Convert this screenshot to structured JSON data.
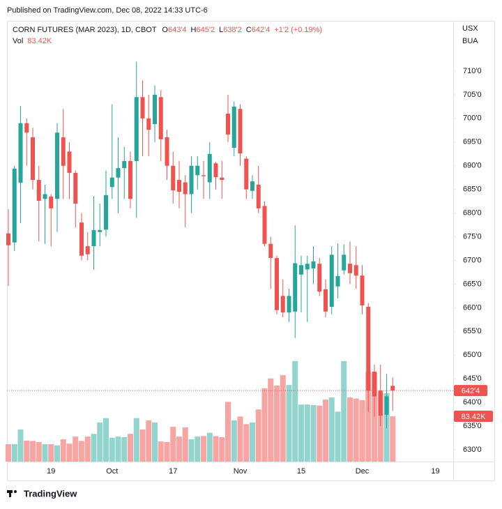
{
  "published": "Published on TradingView.com, Dec 08, 2022 14:33 UTC-6",
  "brand": "TradingView",
  "chart_data": {
    "type": "candlestick",
    "title": "CORN FUTURES (MAR 2023), 1D, CBOT",
    "ohlc_header": [
      {
        "key": "O",
        "value": "643'4"
      },
      {
        "key": "H",
        "value": "645'2"
      },
      {
        "key": "L",
        "value": "638'2"
      },
      {
        "key": "C",
        "value": "642'4"
      }
    ],
    "change": "+1'2 (+0.19%)",
    "currency": [
      "USX",
      "BUA"
    ],
    "last_price_label": "642'4",
    "up_color": "#26a69a",
    "down_color": "#ef5350",
    "volume_up_color": "#93d4ce",
    "volume_down_color": "#f6a5a3",
    "categories": [
      null,
      null,
      null,
      null,
      null,
      null,
      null,
      "19",
      null,
      null,
      null,
      null,
      null,
      null,
      null,
      null,
      null,
      "Oct",
      null,
      null,
      null,
      null,
      null,
      null,
      null,
      null,
      null,
      "17",
      null,
      null,
      null,
      null,
      null,
      null,
      null,
      null,
      null,
      null,
      "Nov",
      null,
      null,
      null,
      null,
      null,
      null,
      null,
      null,
      null,
      "15",
      null,
      null,
      null,
      null,
      null,
      null,
      null,
      null,
      null,
      "Dec",
      null,
      null,
      null,
      null,
      null,
      null,
      null,
      null,
      null,
      null,
      null,
      "19",
      null
    ],
    "open": [
      675.7,
      673.8,
      686.4,
      699,
      696,
      687,
      683,
      683.5,
      683,
      696,
      693,
      688.5,
      678,
      673,
      673,
      676,
      676.5,
      685.5,
      687.5,
      689.5,
      691,
      691,
      704.5,
      700,
      698.8,
      704.5,
      696,
      690,
      687,
      686.5,
      684,
      688,
      688,
      686.5,
      690.5,
      687.5,
      701,
      693.8,
      702,
      691.5,
      684.7,
      686,
      681.5,
      673.5,
      670.5,
      662.5,
      659,
      659.2,
      667,
      668.1,
      668.3,
      669.3,
      663.9,
      660.2,
      664.5,
      667.9,
      669.3,
      669,
      666.8,
      660.2,
      646.5,
      642.5,
      637.4,
      643.5,
      null,
      null,
      null,
      null,
      null,
      null,
      null,
      null
    ],
    "high": [
      680.8,
      690,
      702.6,
      700,
      698,
      690,
      686,
      684,
      699,
      702,
      695,
      689,
      680,
      676,
      683.6,
      682,
      689,
      703,
      696,
      694,
      693,
      712,
      708,
      705,
      707,
      706,
      697.6,
      693,
      691,
      688,
      692,
      692,
      691,
      695,
      690.8,
      691,
      705,
      703.6,
      703,
      692,
      688,
      690,
      682.5,
      675,
      671,
      666,
      664,
      677.4,
      671,
      671,
      673,
      670.5,
      666,
      673,
      673.6,
      673.4,
      674,
      673,
      669,
      661,
      648,
      648,
      646,
      645.25,
      null,
      null,
      null,
      null,
      null,
      null,
      null,
      null
    ],
    "low": [
      664.6,
      672,
      677.9,
      690,
      685,
      674,
      673.5,
      673,
      676,
      683,
      683,
      677,
      670,
      670,
      668,
      673,
      675,
      683,
      680,
      683,
      681,
      679,
      692,
      692,
      695,
      691,
      687,
      682,
      681,
      677,
      680,
      685,
      683,
      683,
      685,
      683,
      695,
      692,
      690,
      683,
      683,
      680,
      673,
      664,
      658.6,
      658,
      657,
      653.6,
      659,
      657,
      665,
      662.5,
      658,
      658.6,
      662,
      667,
      665,
      664,
      658.6,
      638,
      637,
      635,
      634.5,
      638.25,
      null,
      null,
      null,
      null,
      null,
      null,
      null,
      null
    ],
    "close": [
      673.2,
      689.4,
      699,
      697,
      687,
      682.6,
      684,
      681,
      697,
      690,
      688.5,
      682,
      671,
      671.3,
      676.4,
      676.4,
      683.8,
      687.5,
      689.5,
      691,
      683,
      704.5,
      700,
      697.6,
      705,
      695.6,
      690,
      684.8,
      684.5,
      684,
      690,
      690,
      687.8,
      692.5,
      687.6,
      687,
      696.6,
      702.5,
      692.6,
      685,
      686.7,
      681,
      673.5,
      670.5,
      659.5,
      659,
      662.5,
      669.4,
      669,
      669.3,
      669.8,
      663.4,
      659.2,
      671.2,
      666.7,
      671.2,
      667.3,
      666.8,
      660.5,
      642.5,
      641.3,
      637.2,
      641.3,
      642.5,
      null,
      null,
      null,
      null,
      null,
      null,
      null,
      null
    ],
    "volume": {
      "name": "Vol",
      "last_label": "83.42K",
      "values": [
        32,
        32,
        59,
        38.5,
        38,
        36,
        32,
        32,
        30,
        41,
        33,
        46,
        38,
        46,
        51,
        72,
        80,
        44,
        46,
        45,
        51,
        80,
        59,
        76,
        72,
        37,
        36,
        64,
        46,
        63,
        41,
        46,
        47,
        53,
        47,
        45,
        110,
        76,
        83,
        69,
        72,
        96,
        135,
        153,
        140,
        159,
        141,
        185,
        105,
        105,
        104,
        103,
        114,
        118,
        92,
        185,
        118,
        116,
        113,
        166,
        163,
        127,
        126,
        83.42,
        null,
        null,
        null,
        null,
        null,
        null,
        null,
        null
      ]
    },
    "vlim": [
      0,
      811
    ],
    "ylim": [
      627.5,
      720.6
    ],
    "yticks": [
      {
        "value": 630,
        "label": "630'0"
      },
      {
        "value": 635,
        "label": "635'0"
      },
      {
        "value": 640,
        "label": "640'0"
      },
      {
        "value": 645,
        "label": "645'0"
      },
      {
        "value": 650,
        "label": "650'0"
      },
      {
        "value": 655,
        "label": "655'0"
      },
      {
        "value": 660,
        "label": "660'0"
      },
      {
        "value": 665,
        "label": "665'0"
      },
      {
        "value": 670,
        "label": "670'0"
      },
      {
        "value": 675,
        "label": "675'0"
      },
      {
        "value": 680,
        "label": "680'0"
      },
      {
        "value": 685,
        "label": "685'0"
      },
      {
        "value": 690,
        "label": "690'0"
      },
      {
        "value": 695,
        "label": "695'0"
      },
      {
        "value": 700,
        "label": "700'0"
      },
      {
        "value": 705,
        "label": "705'0"
      },
      {
        "value": 710,
        "label": "710'0"
      }
    ],
    "grid": false
  }
}
